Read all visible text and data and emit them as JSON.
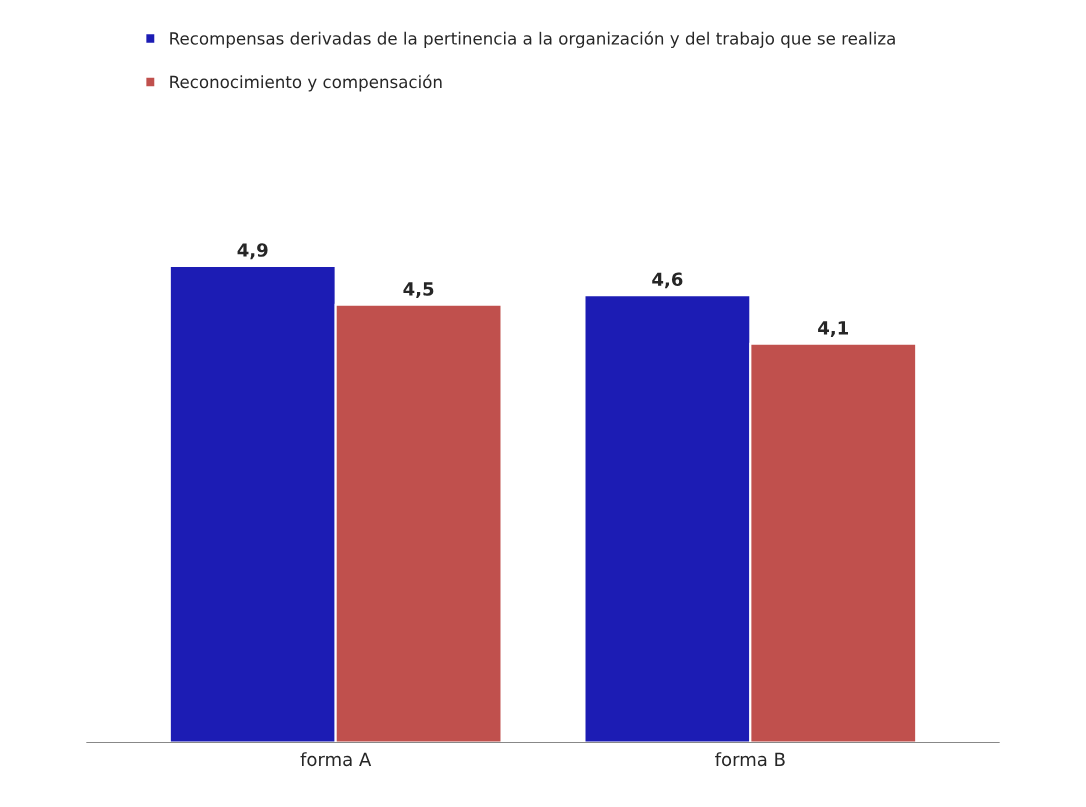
{
  "chart_data": {
    "type": "bar",
    "categories": [
      "forma A",
      "forma B"
    ],
    "series": [
      {
        "name": "Recompensas derivadas de la pertinencia a la organización y del trabajo que se realiza",
        "color": "#1c1cb4",
        "values": [
          4.9,
          4.6
        ],
        "value_labels": [
          "4,9",
          "4,6"
        ]
      },
      {
        "name": "Reconocimiento y compensación",
        "color": "#c0504d",
        "values": [
          4.5,
          4.1
        ],
        "value_labels": [
          "4,5",
          "4,1"
        ]
      }
    ],
    "grid": false,
    "legend": "top left",
    "tick_labels": "x"
  }
}
